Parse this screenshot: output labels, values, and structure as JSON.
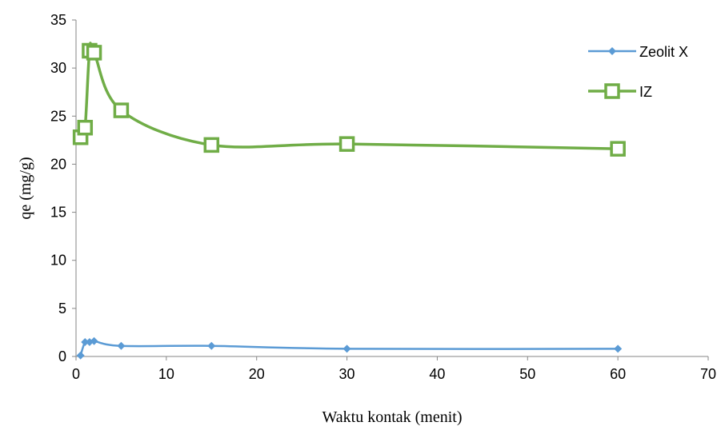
{
  "chart_data": {
    "type": "line",
    "title": "",
    "xlabel": "Waktu kontak (menit)",
    "ylabel": "qe (mg/g)",
    "xlim": [
      0,
      70
    ],
    "ylim": [
      0,
      35
    ],
    "xticks": [
      0,
      10,
      20,
      30,
      40,
      50,
      60,
      70
    ],
    "yticks": [
      0,
      5,
      10,
      15,
      20,
      25,
      30,
      35
    ],
    "grid": false,
    "legend_position": "top-right",
    "smooth": true,
    "series": [
      {
        "name": "Zeolit X",
        "color": "#5b9bd5",
        "marker": "diamond",
        "x": [
          0.5,
          1,
          1.5,
          2,
          5,
          15,
          30,
          60
        ],
        "y": [
          0.1,
          1.5,
          1.5,
          1.6,
          1.1,
          1.1,
          0.8,
          0.8
        ]
      },
      {
        "name": "IZ",
        "color": "#70ad47",
        "marker": "square-open",
        "x": [
          0.5,
          1,
          1.5,
          2,
          5,
          15,
          30,
          60
        ],
        "y": [
          22.8,
          23.8,
          31.8,
          31.6,
          25.6,
          22.0,
          22.1,
          21.6
        ]
      }
    ]
  }
}
